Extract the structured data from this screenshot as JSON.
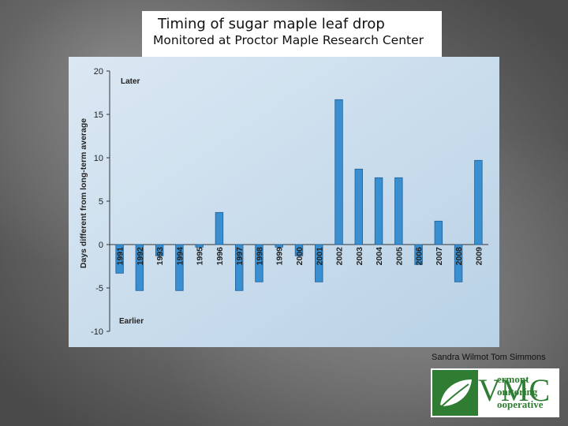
{
  "header": {
    "title": "Timing of sugar maple leaf drop",
    "subtitle": "Monitored at Proctor Maple Research Center"
  },
  "credit": "Sandra Wilmot Tom Simmons",
  "logo": {
    "letters": "VMC",
    "lines": [
      "ermont",
      "onitoring",
      "ooperative"
    ],
    "icon": "leaf-icon",
    "color": "#2e7d32"
  },
  "chart_data": {
    "type": "bar",
    "categories": [
      "1991",
      "1992",
      "1993",
      "1994",
      "1995",
      "1996",
      "1997",
      "1998",
      "1999",
      "2000",
      "2001",
      "2002",
      "2003",
      "2004",
      "2005",
      "2006",
      "2007",
      "2008",
      "2009"
    ],
    "values": [
      -3.3,
      -5.3,
      -1.3,
      -5.3,
      -0.3,
      3.7,
      -5.3,
      -4.3,
      -0.3,
      -1.3,
      -4.3,
      16.7,
      8.7,
      7.7,
      7.7,
      -2.3,
      2.7,
      -4.3,
      9.7
    ],
    "ylabel": "Days different from long-term average",
    "ylim": [
      -10,
      20
    ],
    "yticks": [
      "-10",
      "-5",
      "0",
      "5",
      "10",
      "15",
      "20"
    ],
    "annotations": {
      "top": "Later",
      "bottom": "Earlier"
    },
    "grid": false,
    "bar_color": "#3a8fd0",
    "bar_edge": "#1f5f99",
    "plot_background": "#c8dcec"
  }
}
